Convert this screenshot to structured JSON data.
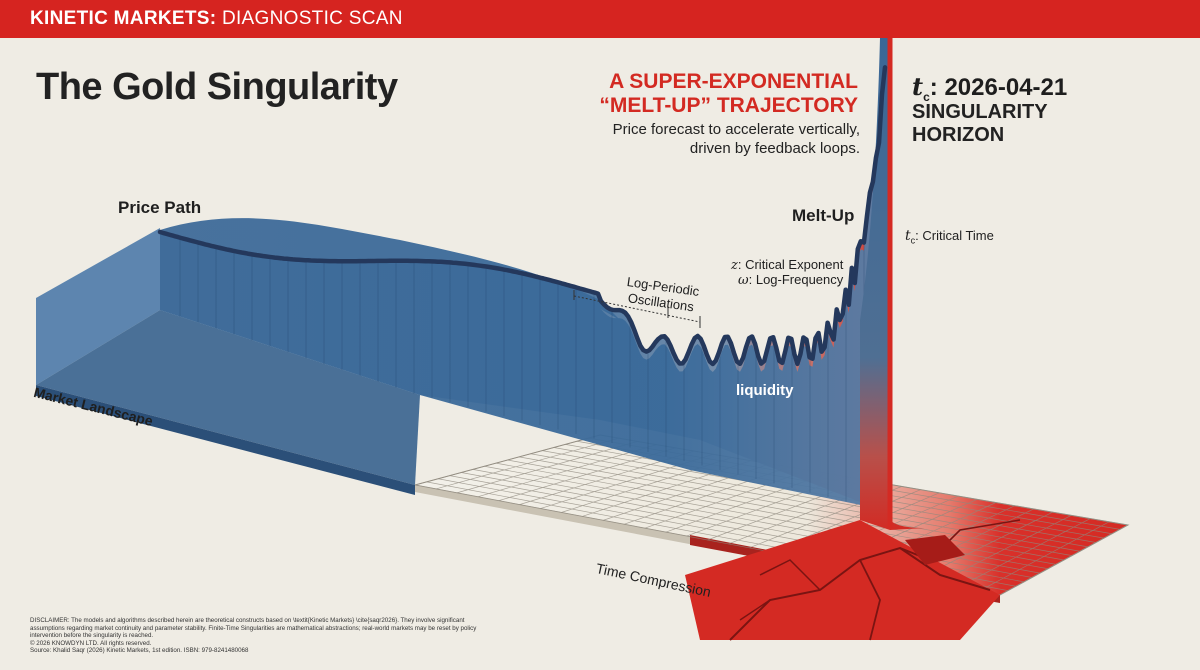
{
  "header": {
    "brand_bold": "KINETIC MARKETS:",
    "brand_light": " DIAGNOSTIC SCAN"
  },
  "title": "The Gold Singularity",
  "headline": {
    "line1": "A SUPER-EXPONENTIAL",
    "line2": "“MELT-UP” TRAJECTORY",
    "sub_line1": "Price forecast to accelerate vertically,",
    "sub_line2": "driven by feedback loops."
  },
  "critical_time": {
    "symbol": "t",
    "subscript": "c",
    "date": ": 2026-04-21",
    "horizon_line1": "SINGULARITY",
    "horizon_line2": "HORIZON"
  },
  "labels": {
    "price_path": "Price Path",
    "melt_up": "Melt-Up",
    "critical_time": ": Critical Time",
    "critical_exponent_symbol": "z",
    "critical_exponent": ": Critical Exponent",
    "log_frequency_symbol": "ω",
    "log_frequency": ": Log-Frequency",
    "log_periodic_line1": "Log-Periodic",
    "log_periodic_line2": "Oscillations",
    "liquidity": "liquidity",
    "market_landscape": "Market Landscape",
    "time_compression": "Time Compression"
  },
  "disclaimer": [
    "DISCLAIMER: The models and algorithms described herein are theoretical constructs based on \\textit{Kinetic Markets} \\cite{saqr2026}. They involve significant",
    "assumptions regarding market continuity and parameter stability. Finite-Time Singularities are mathematical abstractions; real-world markets may be reset by policy",
    "intervention before the singularity is reached.",
    "© 2026 KNOWDYN LTD. All rights reserved.",
    "Source: Khalid Saqr (2026) Kinetic Markets, 1st edition. ISBN: 979-8241480068"
  ],
  "colors": {
    "brand_red": "#d62420",
    "water_blue": "#3d6fa0",
    "deep_blue": "#2a5583",
    "price_line": "#24385c",
    "paper": "#efece4"
  },
  "icons": []
}
